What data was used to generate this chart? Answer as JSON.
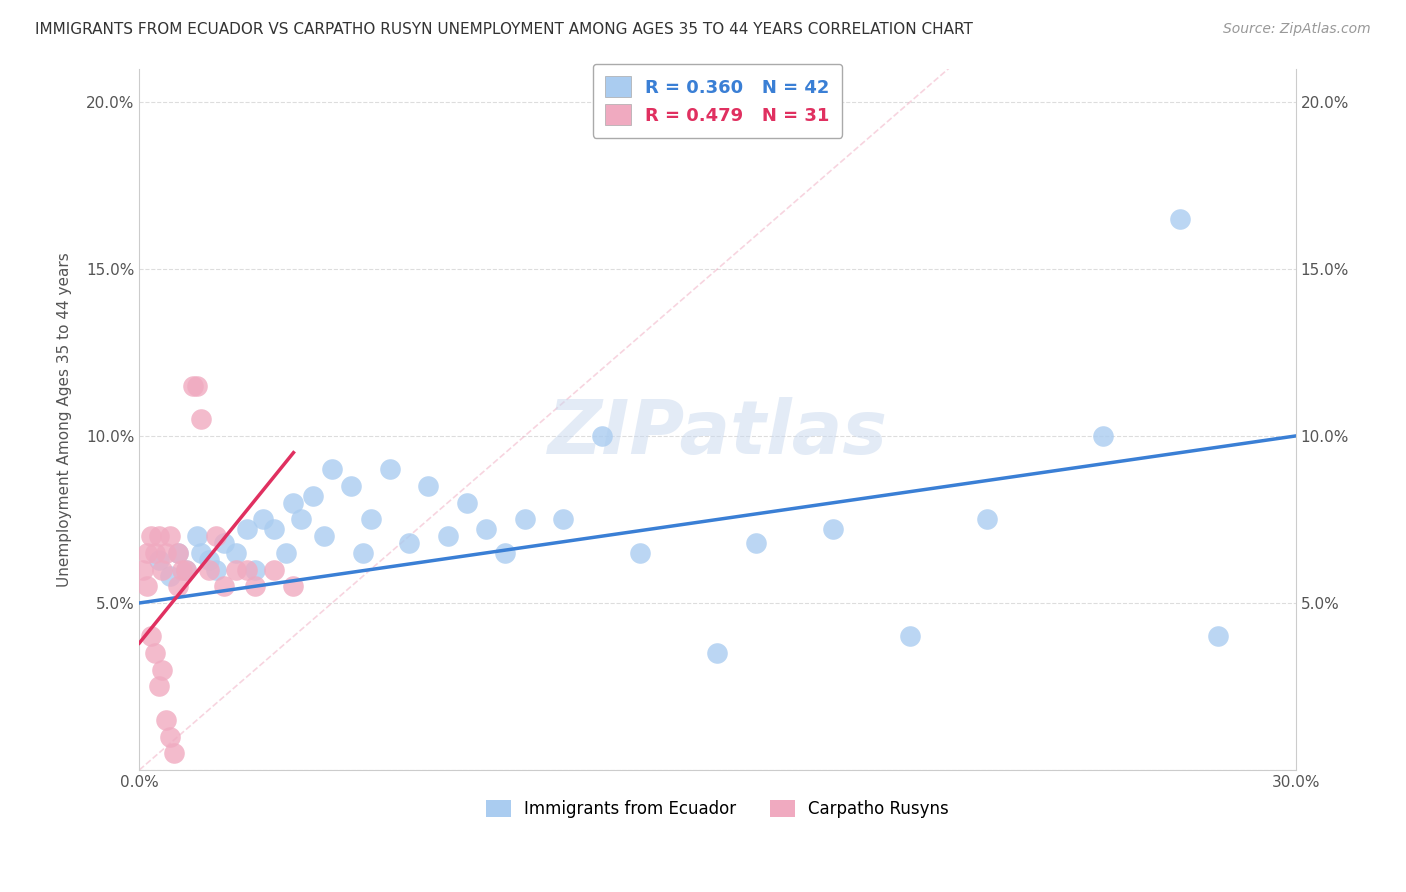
{
  "title": "IMMIGRANTS FROM ECUADOR VS CARPATHO RUSYN UNEMPLOYMENT AMONG AGES 35 TO 44 YEARS CORRELATION CHART",
  "source": "Source: ZipAtlas.com",
  "ylabel": "Unemployment Among Ages 35 to 44 years",
  "xmin": 0.0,
  "xmax": 0.3,
  "ymin": 0.0,
  "ymax": 0.21,
  "x_tick_positions": [
    0.0,
    0.05,
    0.1,
    0.15,
    0.2,
    0.25,
    0.3
  ],
  "x_tick_labels": [
    "0.0%",
    "",
    "",
    "",
    "",
    "",
    "30.0%"
  ],
  "y_tick_positions": [
    0.0,
    0.05,
    0.1,
    0.15,
    0.2
  ],
  "y_tick_labels": [
    "",
    "5.0%",
    "10.0%",
    "15.0%",
    "20.0%"
  ],
  "legend_ecuador": "Immigrants from Ecuador",
  "legend_rusyn": "Carpatho Rusyns",
  "R_ecuador": 0.36,
  "N_ecuador": 42,
  "R_rusyn": 0.479,
  "N_rusyn": 31,
  "color_ecuador": "#aaccf0",
  "color_rusyn": "#f0aac0",
  "line_color_ecuador": "#3a7fd5",
  "line_color_rusyn": "#e03060",
  "watermark": "ZIPatlas",
  "ecuador_x": [
    0.005,
    0.008,
    0.01,
    0.012,
    0.015,
    0.016,
    0.018,
    0.02,
    0.022,
    0.025,
    0.028,
    0.03,
    0.032,
    0.035,
    0.038,
    0.04,
    0.042,
    0.045,
    0.048,
    0.05,
    0.055,
    0.058,
    0.06,
    0.065,
    0.07,
    0.075,
    0.08,
    0.085,
    0.09,
    0.095,
    0.1,
    0.11,
    0.12,
    0.13,
    0.15,
    0.16,
    0.18,
    0.2,
    0.22,
    0.25,
    0.27,
    0.28
  ],
  "ecuador_y": [
    0.063,
    0.058,
    0.065,
    0.06,
    0.07,
    0.065,
    0.063,
    0.06,
    0.068,
    0.065,
    0.072,
    0.06,
    0.075,
    0.072,
    0.065,
    0.08,
    0.075,
    0.082,
    0.07,
    0.09,
    0.085,
    0.065,
    0.075,
    0.09,
    0.068,
    0.085,
    0.07,
    0.08,
    0.072,
    0.065,
    0.075,
    0.075,
    0.1,
    0.065,
    0.035,
    0.068,
    0.072,
    0.04,
    0.075,
    0.1,
    0.165,
    0.04
  ],
  "rusyn_x": [
    0.001,
    0.002,
    0.002,
    0.003,
    0.003,
    0.004,
    0.004,
    0.005,
    0.005,
    0.006,
    0.006,
    0.007,
    0.007,
    0.008,
    0.008,
    0.009,
    0.01,
    0.01,
    0.011,
    0.012,
    0.014,
    0.015,
    0.016,
    0.018,
    0.02,
    0.022,
    0.025,
    0.028,
    0.03,
    0.035,
    0.04
  ],
  "rusyn_y": [
    0.06,
    0.055,
    0.065,
    0.04,
    0.07,
    0.035,
    0.065,
    0.025,
    0.07,
    0.03,
    0.06,
    0.015,
    0.065,
    0.01,
    0.07,
    0.005,
    0.055,
    0.065,
    0.06,
    0.06,
    0.115,
    0.115,
    0.105,
    0.06,
    0.07,
    0.055,
    0.06,
    0.06,
    0.055,
    0.06,
    0.055
  ],
  "diag_line_x": [
    0.0,
    0.21
  ],
  "diag_line_y": [
    0.0,
    0.21
  ],
  "ecu_line_x": [
    0.0,
    0.3
  ],
  "ecu_line_y": [
    0.05,
    0.1
  ],
  "rus_line_x": [
    0.0,
    0.04
  ],
  "rus_line_y": [
    0.038,
    0.095
  ]
}
